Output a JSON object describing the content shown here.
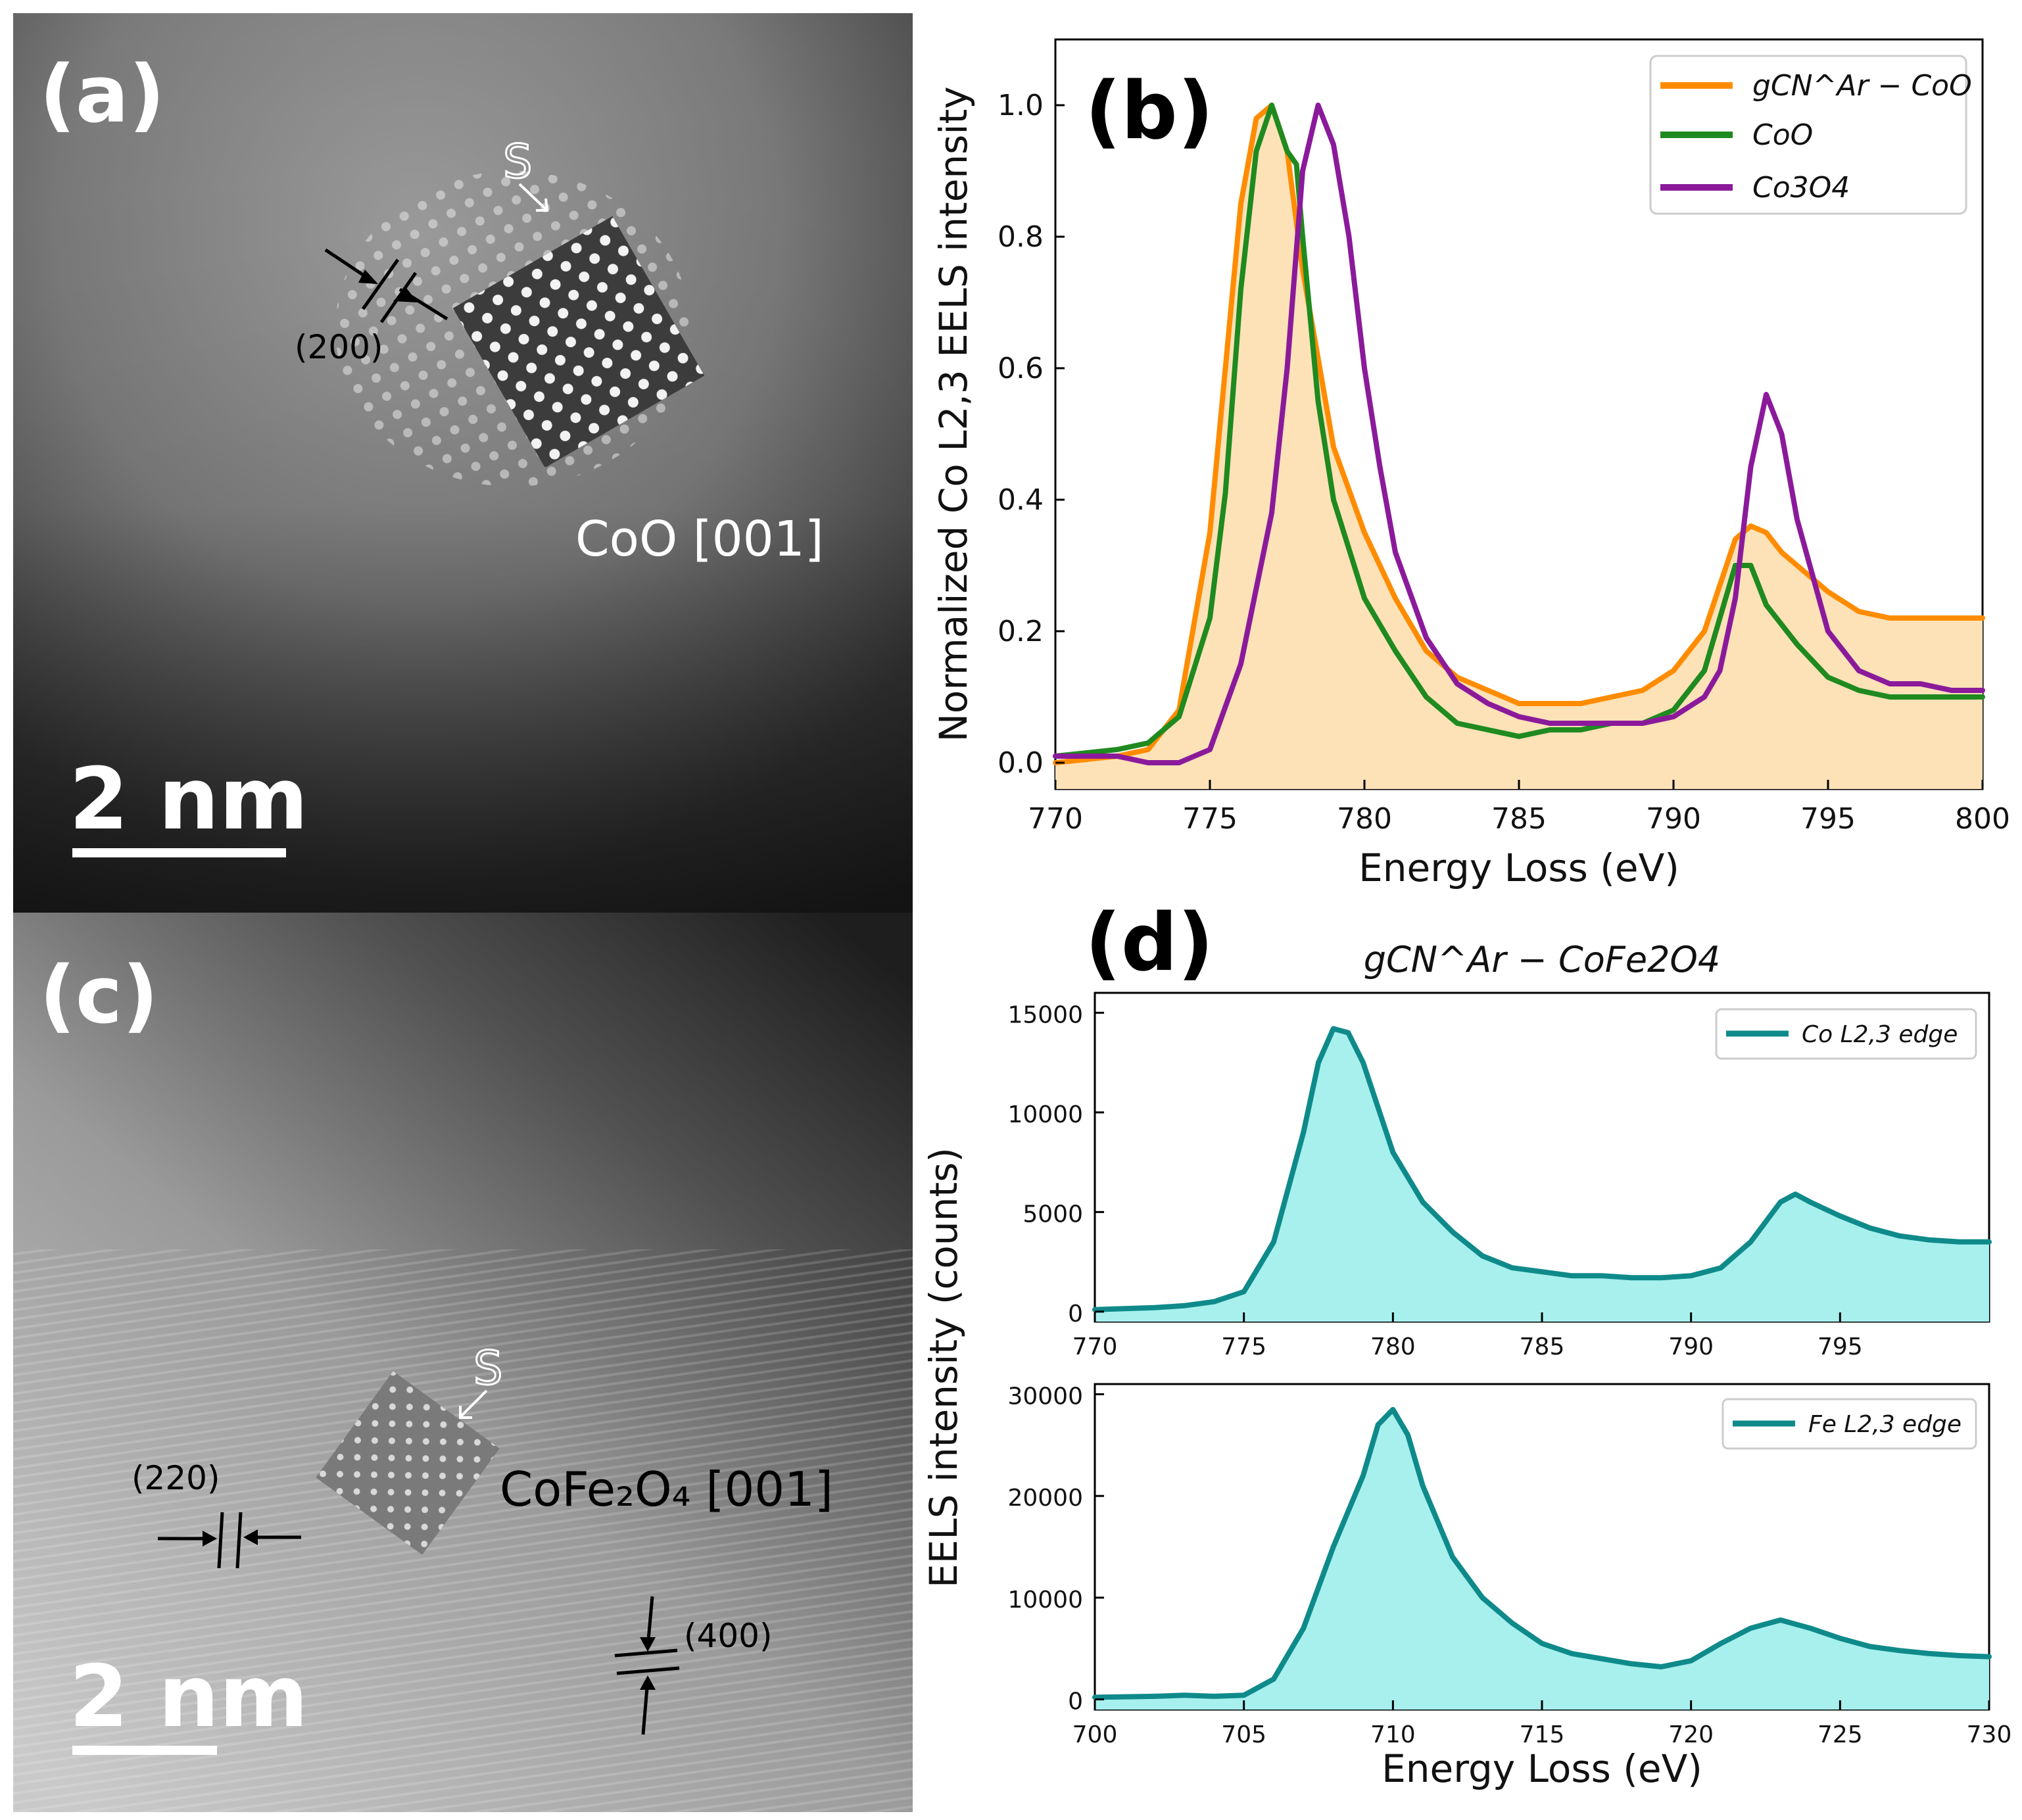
{
  "figure": {
    "panel_a": {
      "label": "(a)",
      "zone_label": "S",
      "plane_label": "(200)",
      "phase_label": "CoO [001]",
      "scale_bar": "2 nm"
    },
    "panel_c": {
      "label": "(c)",
      "zone_label": "S",
      "plane_label_1": "(220)",
      "plane_label_2": "(400)",
      "phase_label": "CoFe₂O₄ [001]",
      "scale_bar": "2 nm"
    },
    "panel_b": {
      "label": "(b)"
    },
    "panel_d": {
      "label": "(d)"
    }
  },
  "colors": {
    "orange": "#ff8c00",
    "orange_fill": "#fde2b8",
    "green": "#1f8a1f",
    "purple": "#8b1a9b",
    "teal": "#0f8a8a",
    "teal_fill": "#a7f0ee"
  },
  "chart_data": [
    {
      "id": "b",
      "type": "line",
      "title": "",
      "xlabel": "Energy Loss (eV)",
      "ylabel": "Normalized Co L2,3 EELS intensity",
      "xlim": [
        770,
        800
      ],
      "ylim": [
        -0.04,
        1.1
      ],
      "xticks": [
        770,
        775,
        780,
        785,
        790,
        795,
        800
      ],
      "xtick_labels": [
        "770",
        "775",
        "780",
        "785",
        "790",
        "795",
        "800"
      ],
      "yticks": [
        0.0,
        0.2,
        0.4,
        0.6,
        0.8,
        1.0
      ],
      "ytick_labels": [
        "0.0",
        "0.2",
        "0.4",
        "0.6",
        "0.8",
        "1.0"
      ],
      "legend_position": "top-right",
      "series": [
        {
          "name": "gCN^Ar − CoO",
          "color": "#ff8c00",
          "filled": true,
          "x": [
            770,
            772,
            773,
            774,
            775,
            775.5,
            776,
            776.5,
            777,
            777.5,
            778,
            779,
            780,
            781,
            782,
            783,
            784,
            785,
            786,
            787,
            788,
            789,
            790,
            791,
            791.5,
            792,
            792.5,
            793,
            793.5,
            794,
            795,
            796,
            797,
            798,
            799,
            800
          ],
          "y": [
            0.0,
            0.01,
            0.02,
            0.08,
            0.35,
            0.6,
            0.85,
            0.98,
            1.0,
            0.93,
            0.75,
            0.48,
            0.35,
            0.25,
            0.17,
            0.13,
            0.11,
            0.09,
            0.09,
            0.09,
            0.1,
            0.11,
            0.14,
            0.2,
            0.27,
            0.34,
            0.36,
            0.35,
            0.32,
            0.3,
            0.26,
            0.23,
            0.22,
            0.22,
            0.22,
            0.22
          ]
        },
        {
          "name": "CoO",
          "color": "#1f8a1f",
          "filled": false,
          "x": [
            770,
            772,
            773,
            774,
            775,
            775.5,
            776,
            776.5,
            777,
            777.5,
            777.8,
            778,
            778.5,
            779,
            780,
            781,
            782,
            783,
            784,
            785,
            786,
            787,
            788,
            789,
            790,
            791,
            791.5,
            792,
            792.5,
            793,
            794,
            795,
            796,
            797,
            798,
            799,
            800
          ],
          "y": [
            0.01,
            0.02,
            0.03,
            0.07,
            0.22,
            0.41,
            0.72,
            0.93,
            1.0,
            0.93,
            0.91,
            0.8,
            0.55,
            0.4,
            0.25,
            0.17,
            0.1,
            0.06,
            0.05,
            0.04,
            0.05,
            0.05,
            0.06,
            0.06,
            0.08,
            0.14,
            0.22,
            0.3,
            0.3,
            0.24,
            0.18,
            0.13,
            0.11,
            0.1,
            0.1,
            0.1,
            0.1
          ]
        },
        {
          "name": "Co3O4",
          "color": "#8b1a9b",
          "filled": false,
          "x": [
            770,
            772,
            773,
            774,
            775,
            776,
            777,
            777.5,
            778,
            778.5,
            779,
            779.5,
            780,
            780.5,
            781,
            782,
            783,
            784,
            785,
            786,
            787,
            788,
            789,
            790,
            791,
            791.5,
            792,
            792.5,
            793,
            793.5,
            794,
            795,
            796,
            797,
            798,
            799,
            800
          ],
          "y": [
            0.01,
            0.01,
            0.0,
            0.0,
            0.02,
            0.15,
            0.38,
            0.6,
            0.9,
            1.0,
            0.94,
            0.8,
            0.6,
            0.45,
            0.32,
            0.19,
            0.12,
            0.09,
            0.07,
            0.06,
            0.06,
            0.06,
            0.06,
            0.07,
            0.1,
            0.14,
            0.25,
            0.45,
            0.56,
            0.5,
            0.37,
            0.2,
            0.14,
            0.12,
            0.12,
            0.11,
            0.11
          ]
        }
      ]
    },
    {
      "id": "d-top",
      "type": "area",
      "title": "gCN^Ar − CoFe2O4",
      "xlabel": "",
      "ylabel": "EELS intensity (counts)",
      "xlim": [
        770,
        800
      ],
      "ylim": [
        -500,
        16000
      ],
      "xticks": [
        770,
        775,
        780,
        785,
        790,
        795
      ],
      "xtick_labels": [
        "770",
        "775",
        "780",
        "785",
        "790",
        "795"
      ],
      "yticks": [
        0,
        5000,
        10000,
        15000
      ],
      "ytick_labels": [
        "0",
        "5000",
        "10000",
        "15000"
      ],
      "legend_position": "top-right",
      "series": [
        {
          "name": "Co L2,3 edge",
          "color": "#0f8a8a",
          "x": [
            770,
            772,
            773,
            774,
            775,
            776,
            777,
            777.5,
            778,
            778.5,
            779,
            780,
            781,
            782,
            783,
            784,
            785,
            786,
            787,
            788,
            789,
            790,
            791,
            792,
            792.5,
            793,
            793.5,
            794,
            795,
            796,
            797,
            798,
            799,
            800
          ],
          "y": [
            100,
            200,
            300,
            500,
            1000,
            3500,
            9000,
            12500,
            14200,
            14000,
            12500,
            8000,
            5500,
            4000,
            2800,
            2200,
            2000,
            1800,
            1800,
            1700,
            1700,
            1800,
            2200,
            3500,
            4500,
            5500,
            5900,
            5500,
            4800,
            4200,
            3800,
            3600,
            3500,
            3500
          ]
        }
      ]
    },
    {
      "id": "d-bottom",
      "type": "area",
      "title": "",
      "xlabel": "Energy Loss (eV)",
      "ylabel": "",
      "xlim": [
        700,
        730
      ],
      "ylim": [
        -1000,
        31000
      ],
      "xticks": [
        700,
        705,
        710,
        715,
        720,
        725,
        730
      ],
      "xtick_labels": [
        "700",
        "705",
        "710",
        "715",
        "720",
        "725",
        "730"
      ],
      "yticks": [
        0,
        10000,
        20000,
        30000
      ],
      "ytick_labels": [
        "0",
        "10000",
        "20000",
        "30000"
      ],
      "legend_position": "top-right",
      "series": [
        {
          "name": "Fe L2,3 edge",
          "color": "#0f8a8a",
          "x": [
            700,
            702,
            703,
            704,
            705,
            706,
            707,
            708,
            709,
            709.5,
            710,
            710.5,
            711,
            712,
            713,
            714,
            715,
            716,
            717,
            718,
            719,
            720,
            721,
            722,
            723,
            724,
            725,
            726,
            727,
            728,
            729,
            730
          ],
          "y": [
            200,
            300,
            400,
            300,
            400,
            2000,
            7000,
            15000,
            22000,
            27000,
            28500,
            26000,
            21000,
            14000,
            10000,
            7500,
            5500,
            4500,
            4000,
            3500,
            3200,
            3800,
            5500,
            7000,
            7800,
            7000,
            6000,
            5200,
            4800,
            4500,
            4300,
            4200
          ]
        }
      ]
    }
  ]
}
